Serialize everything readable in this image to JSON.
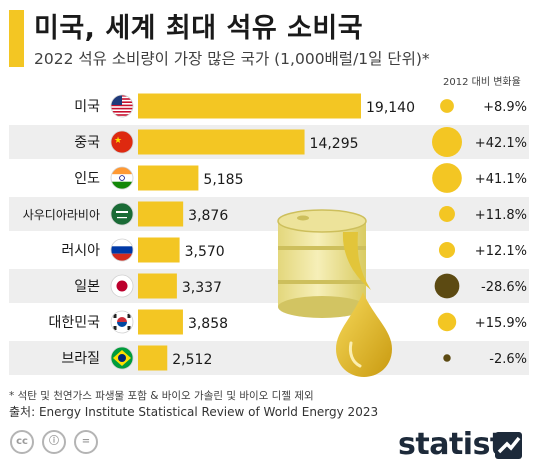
{
  "header": {
    "title": "미국, 세계 최대 석유 소비국",
    "subtitle": "2022 석유 소비량이 가장 많은 국가 (1,000배럴/1일 단위)*",
    "change_column_label": "2012 대비 변화율"
  },
  "footer": {
    "footnote": "* 석탄 및 천연가스 파생물 포함 & 바이오 가솔린 및 바이오 디젤 제외",
    "source": "출처: Energy Institute Statistical Review of World Energy 2023",
    "brand": "statista",
    "license_icons": [
      "cc-icon",
      "by-icon",
      "nd-icon"
    ]
  },
  "colors": {
    "accent": "#f3c623",
    "stripe": "#eeeeee",
    "negative_bubble": "#5c4a12",
    "barrel": "#efe59c"
  },
  "chart_data": {
    "type": "bar",
    "orientation": "horizontal",
    "value_format": "thousands-comma",
    "categories": [
      "미국",
      "중국",
      "인도",
      "사우디아라비아",
      "러시아",
      "일본",
      "대한민국",
      "브라질"
    ],
    "flag_icons": [
      "us-flag-icon",
      "china-flag-icon",
      "india-flag-icon",
      "saudi-arabia-flag-icon",
      "russia-flag-icon",
      "japan-flag-icon",
      "south-korea-flag-icon",
      "brazil-flag-icon"
    ],
    "values": [
      19140,
      14295,
      5185,
      3876,
      3570,
      3337,
      3858,
      2512
    ],
    "change_values": [
      8.9,
      42.1,
      41.1,
      11.8,
      12.1,
      -28.6,
      15.9,
      -2.6
    ],
    "change_labels": [
      "+8.9%",
      "+42.1%",
      "+41.1%",
      "+11.8%",
      "+12.1%",
      "-28.6%",
      "+15.9%",
      "-2.6%"
    ],
    "xlim": [
      0,
      19140
    ],
    "grid": false,
    "legend": "none"
  }
}
